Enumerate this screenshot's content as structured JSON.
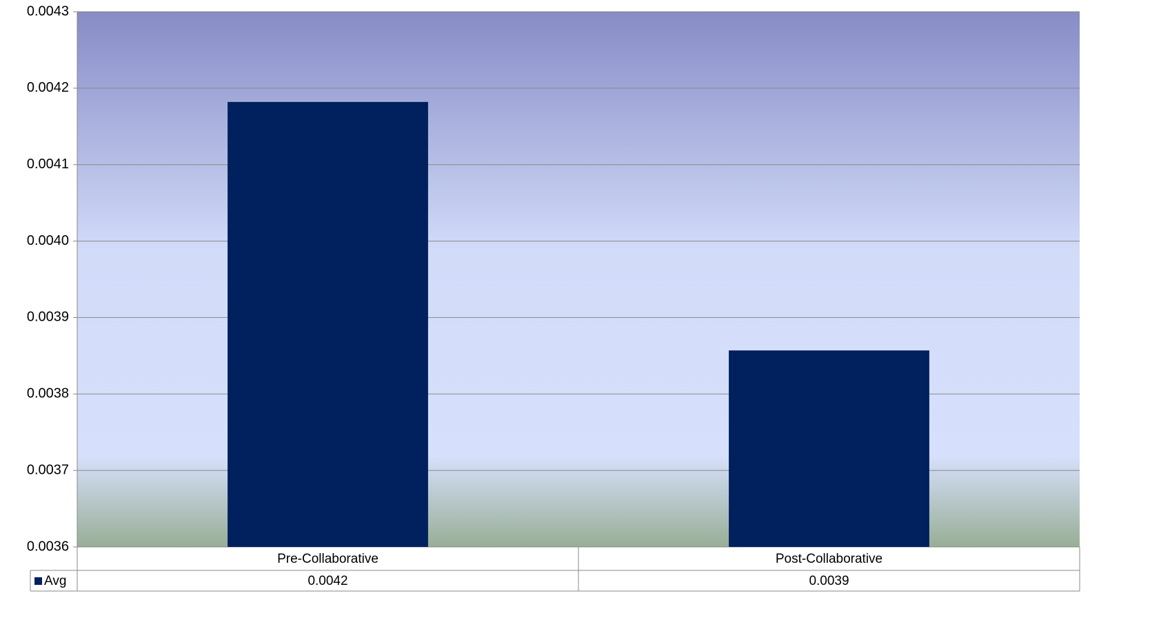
{
  "chart_data": {
    "type": "bar",
    "categories": [
      "Pre-Collaborative",
      "Post-Collaborative"
    ],
    "series": [
      {
        "name": "Avg",
        "color": "#00205e",
        "values": [
          0.004182,
          0.003857
        ],
        "value_labels": [
          "0.0042",
          "0.0039"
        ]
      }
    ],
    "ylim": [
      0.0036,
      0.0043
    ],
    "yticks": [
      0.0036,
      0.0037,
      0.0038,
      0.0039,
      {
        "value": 0.004,
        "label": "0.0040"
      },
      0.0041,
      0.0042,
      0.0043
    ],
    "grid": true,
    "legend": "data-table"
  }
}
